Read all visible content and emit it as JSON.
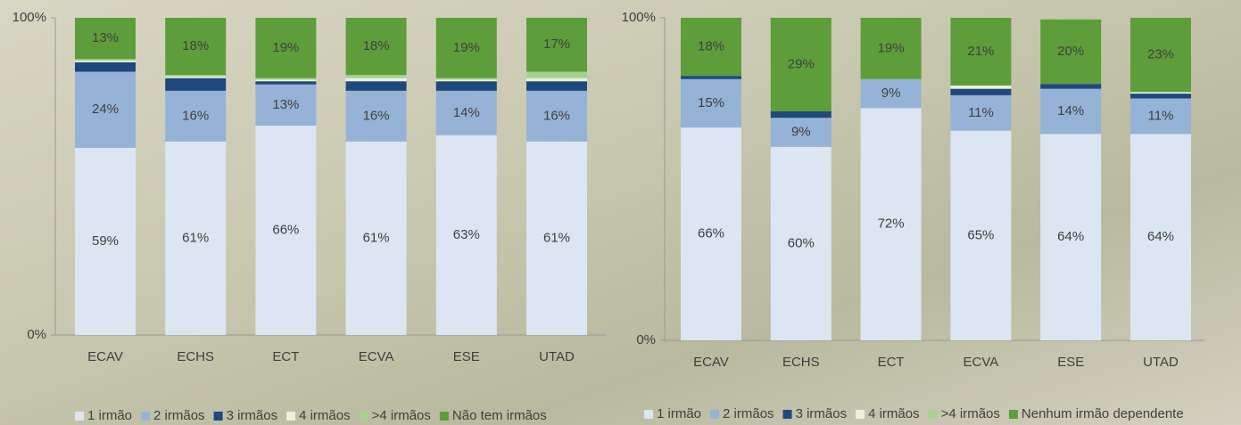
{
  "chart_data": [
    {
      "type": "bar",
      "stacked": true,
      "categories": [
        "ECAV",
        "ECHS",
        "ECT",
        "ECVA",
        "ESE",
        "UTAD"
      ],
      "ylim": [
        0,
        100
      ],
      "yticks": [
        {
          "value": 0,
          "label": "0%"
        },
        {
          "value": 100,
          "label": "100%"
        }
      ],
      "series": [
        {
          "name": "1 irmão",
          "color": "#dce6f2",
          "values": [
            59,
            61,
            66,
            61,
            63,
            61
          ],
          "value_labels": [
            "59%",
            "61%",
            "66%",
            "61%",
            "63%",
            "61%"
          ]
        },
        {
          "name": "2 irmãos",
          "color": "#95b3d7",
          "values": [
            24,
            16,
            13,
            16,
            14,
            16
          ],
          "value_labels": [
            "24%",
            "16%",
            "13%",
            "16%",
            "14%",
            "16%"
          ]
        },
        {
          "name": "3 irmãos",
          "color": "#1f497d",
          "values": [
            3,
            4,
            1,
            3,
            3,
            3
          ]
        },
        {
          "name": "4 irmãos",
          "color": "#ebf1de",
          "values": [
            0.5,
            0.5,
            0.5,
            1,
            0.5,
            1
          ]
        },
        {
          "name": ">4 irmãos",
          "color": "#a9d18e",
          "values": [
            0.5,
            0.5,
            0.5,
            1,
            0.5,
            2
          ]
        },
        {
          "name": "Não tem irmãos",
          "color": "#5e9e3a",
          "values": [
            13,
            18,
            19,
            18,
            19,
            17
          ],
          "value_labels": [
            "13%",
            "18%",
            "19%",
            "18%",
            "19%",
            "17%"
          ]
        }
      ]
    },
    {
      "type": "bar",
      "stacked": true,
      "categories": [
        "ECAV",
        "ECHS",
        "ECT",
        "ECVA",
        "ESE",
        "UTAD"
      ],
      "ylim": [
        0,
        100
      ],
      "yticks": [
        {
          "value": 0,
          "label": "0%"
        },
        {
          "value": 100,
          "label": "100%"
        }
      ],
      "series": [
        {
          "name": "1 irmão",
          "color": "#dce6f2",
          "values": [
            66,
            60,
            72,
            65,
            64,
            64
          ],
          "value_labels": [
            "66%",
            "60%",
            "72%",
            "65%",
            "64%",
            "64%"
          ]
        },
        {
          "name": "2 irmãos",
          "color": "#95b3d7",
          "values": [
            15,
            9,
            9,
            11,
            14,
            11
          ],
          "value_labels": [
            "15%",
            "9%",
            "9%",
            "11%",
            "14%",
            "11%"
          ]
        },
        {
          "name": "3 irmãos",
          "color": "#1f497d",
          "values": [
            1,
            2,
            0,
            2,
            1.5,
            1.5
          ]
        },
        {
          "name": "4 irmãos",
          "color": "#ebf1de",
          "values": [
            0,
            0,
            0,
            1,
            0,
            0.5
          ]
        },
        {
          "name": ">4 irmãos",
          "color": "#a9d18e",
          "values": [
            0,
            0,
            0,
            0,
            0,
            0
          ]
        },
        {
          "name": "Nenhum irmão dependente",
          "color": "#5e9e3a",
          "values": [
            18,
            29,
            19,
            21,
            20,
            23
          ],
          "value_labels": [
            "18%",
            "29%",
            "19%",
            "21%",
            "20%",
            "23%"
          ]
        }
      ]
    }
  ]
}
